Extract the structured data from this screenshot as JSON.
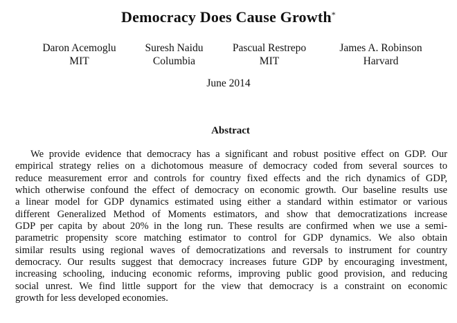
{
  "title": "Democracy Does Cause Growth",
  "title_footnote_mark": "*",
  "authors": [
    {
      "name": "Daron Acemoglu",
      "affiliation": "MIT"
    },
    {
      "name": "Suresh Naidu",
      "affiliation": "Columbia"
    },
    {
      "name": "Pascual Restrepo",
      "affiliation": "MIT"
    },
    {
      "name": "James A. Robinson",
      "affiliation": "Harvard"
    }
  ],
  "date": "June 2014",
  "abstract": {
    "heading": "Abstract",
    "lines": [
      "We provide evidence that democracy has a significant and robust positive effect on GDP. Our",
      "empirical strategy relies on a dichotomous measure of democracy coded from several sources to",
      "reduce measurement error and controls for country fixed effects and the rich dynamics of GDP,",
      "which otherwise confound the effect of democracy on economic growth. Our baseline results use",
      "a linear model for GDP dynamics estimated using either a standard within estimator or various",
      "different Generalized Method of Moments estimators, and show that democratizations increase",
      "GDP per capita by about 20% in the long run. These results are confirmed when we use a semi-",
      "parametric propensity score matching estimator to control for GDP dynamics. We also obtain",
      "similar results using regional waves of democratizations and reversals to instrument for country",
      "democracy. Our results suggest that democracy increases future GDP by encouraging investment,",
      "increasing schooling, inducing economic reforms, improving public good provision, and reducing",
      "social unrest. We find little support for the view that democracy is a constraint on economic",
      "growth for less developed economies."
    ]
  }
}
